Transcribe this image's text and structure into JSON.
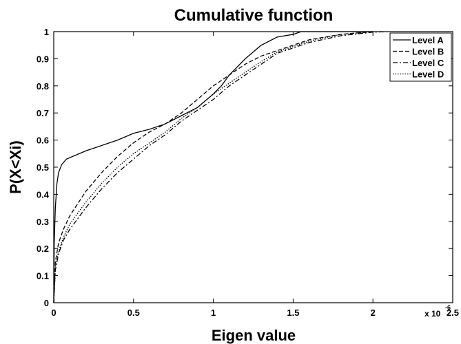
{
  "chart_data": {
    "type": "line",
    "title": "Cumulative function",
    "xlabel": "Eigen value",
    "ylabel": "P(X<Xi)",
    "xlim": [
      0,
      2.5
    ],
    "ylim": [
      0,
      1
    ],
    "x_multiplier": {
      "base": "x 10",
      "exponent": "-6"
    },
    "x_ticks": [
      "0",
      "0.5",
      "1",
      "1.5",
      "2",
      "2.5"
    ],
    "y_ticks": [
      "0",
      "0.1",
      "0.2",
      "0.3",
      "0.4",
      "0.5",
      "0.6",
      "0.7",
      "0.8",
      "0.9",
      "1"
    ],
    "grid": false,
    "legend_position": "top-right",
    "series": [
      {
        "name": "Level A",
        "style": "solid",
        "color": "#000000",
        "points": [
          [
            0,
            0
          ],
          [
            0.003,
            0.22
          ],
          [
            0.01,
            0.35
          ],
          [
            0.02,
            0.44
          ],
          [
            0.03,
            0.48
          ],
          [
            0.05,
            0.51
          ],
          [
            0.08,
            0.53
          ],
          [
            0.12,
            0.54
          ],
          [
            0.2,
            0.56
          ],
          [
            0.3,
            0.58
          ],
          [
            0.4,
            0.6
          ],
          [
            0.5,
            0.625
          ],
          [
            0.6,
            0.64
          ],
          [
            0.7,
            0.66
          ],
          [
            0.8,
            0.69
          ],
          [
            0.9,
            0.72
          ],
          [
            1.0,
            0.77
          ],
          [
            1.05,
            0.8
          ],
          [
            1.1,
            0.84
          ],
          [
            1.2,
            0.9
          ],
          [
            1.3,
            0.95
          ],
          [
            1.4,
            0.98
          ],
          [
            1.5,
            0.99
          ],
          [
            1.55,
            1.0
          ],
          [
            2.0,
            1.0
          ]
        ]
      },
      {
        "name": "Level B",
        "style": "dashed",
        "color": "#000000",
        "points": [
          [
            0,
            0
          ],
          [
            0.01,
            0.15
          ],
          [
            0.03,
            0.22
          ],
          [
            0.06,
            0.27
          ],
          [
            0.1,
            0.32
          ],
          [
            0.2,
            0.41
          ],
          [
            0.3,
            0.48
          ],
          [
            0.4,
            0.54
          ],
          [
            0.5,
            0.59
          ],
          [
            0.6,
            0.63
          ],
          [
            0.7,
            0.66
          ],
          [
            0.8,
            0.7
          ],
          [
            0.9,
            0.75
          ],
          [
            1.0,
            0.8
          ],
          [
            1.1,
            0.84
          ],
          [
            1.2,
            0.88
          ],
          [
            1.3,
            0.91
          ],
          [
            1.4,
            0.93
          ],
          [
            1.5,
            0.95
          ],
          [
            1.6,
            0.97
          ],
          [
            1.8,
            0.99
          ],
          [
            2.0,
            1.0
          ]
        ]
      },
      {
        "name": "Level C",
        "style": "dashdot",
        "color": "#000000",
        "points": [
          [
            0,
            0
          ],
          [
            0.01,
            0.12
          ],
          [
            0.03,
            0.18
          ],
          [
            0.06,
            0.23
          ],
          [
            0.1,
            0.27
          ],
          [
            0.2,
            0.35
          ],
          [
            0.3,
            0.42
          ],
          [
            0.4,
            0.48
          ],
          [
            0.5,
            0.53
          ],
          [
            0.6,
            0.58
          ],
          [
            0.7,
            0.62
          ],
          [
            0.8,
            0.67
          ],
          [
            0.9,
            0.71
          ],
          [
            1.0,
            0.75
          ],
          [
            1.1,
            0.8
          ],
          [
            1.2,
            0.84
          ],
          [
            1.3,
            0.88
          ],
          [
            1.4,
            0.92
          ],
          [
            1.5,
            0.94
          ],
          [
            1.6,
            0.96
          ],
          [
            1.8,
            0.985
          ],
          [
            2.0,
            0.998
          ],
          [
            2.1,
            1.0
          ]
        ]
      },
      {
        "name": "Level D",
        "style": "dotted",
        "color": "#000000",
        "points": [
          [
            0,
            0
          ],
          [
            0.01,
            0.13
          ],
          [
            0.03,
            0.19
          ],
          [
            0.06,
            0.24
          ],
          [
            0.1,
            0.29
          ],
          [
            0.2,
            0.37
          ],
          [
            0.3,
            0.44
          ],
          [
            0.4,
            0.5
          ],
          [
            0.5,
            0.55
          ],
          [
            0.6,
            0.59
          ],
          [
            0.7,
            0.63
          ],
          [
            0.8,
            0.68
          ],
          [
            0.9,
            0.72
          ],
          [
            1.0,
            0.77
          ],
          [
            1.1,
            0.81
          ],
          [
            1.2,
            0.85
          ],
          [
            1.3,
            0.89
          ],
          [
            1.4,
            0.925
          ],
          [
            1.5,
            0.945
          ],
          [
            1.6,
            0.965
          ],
          [
            1.8,
            0.99
          ],
          [
            2.0,
            1.0
          ]
        ]
      }
    ]
  }
}
